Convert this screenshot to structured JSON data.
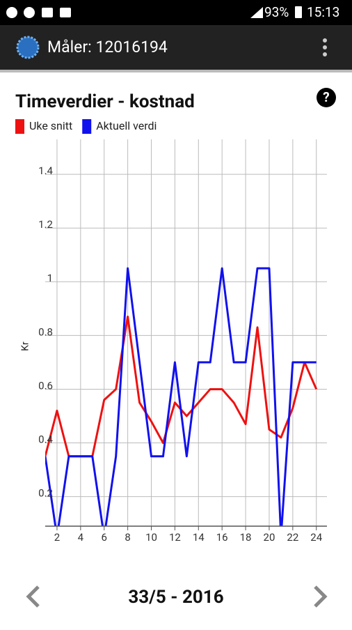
{
  "status_bar": {
    "battery": "93%",
    "time": "15:13"
  },
  "app_bar": {
    "title": "Måler: 12016194"
  },
  "footer": {
    "period": "33/5 - 2016"
  },
  "chart_data": {
    "type": "line",
    "title": "Timeverdier - kostnad",
    "y_label": "Kr",
    "x": [
      1,
      2,
      3,
      4,
      5,
      6,
      7,
      8,
      9,
      10,
      11,
      12,
      13,
      14,
      15,
      16,
      17,
      18,
      19,
      20,
      21,
      22,
      23,
      24
    ],
    "series": [
      {
        "name": "Uke snitt",
        "color": "#ee1111",
        "values": [
          0.35,
          0.52,
          0.35,
          0.35,
          0.35,
          0.56,
          0.6,
          0.87,
          0.55,
          0.48,
          0.4,
          0.55,
          0.5,
          0.55,
          0.6,
          0.6,
          0.55,
          0.47,
          0.83,
          0.45,
          0.42,
          0.53,
          0.7,
          0.6
        ]
      },
      {
        "name": "Aktuell verdi",
        "color": "#1111ee",
        "values": [
          0.35,
          0.05,
          0.35,
          0.35,
          0.35,
          0.05,
          0.35,
          1.05,
          0.7,
          0.35,
          0.35,
          0.7,
          0.35,
          0.7,
          0.7,
          1.05,
          0.7,
          0.7,
          1.05,
          1.05,
          0.05,
          0.7,
          0.7,
          0.7
        ]
      }
    ],
    "xlim": [
      1,
      24.9
    ],
    "ylim": [
      0.09,
      1.53
    ],
    "xticks": [
      2,
      4,
      6,
      8,
      10,
      12,
      14,
      16,
      18,
      20,
      22,
      24
    ],
    "yticks": [
      0.2,
      0.4,
      0.6,
      0.8,
      1,
      1.2,
      1.4
    ],
    "grid": true
  }
}
